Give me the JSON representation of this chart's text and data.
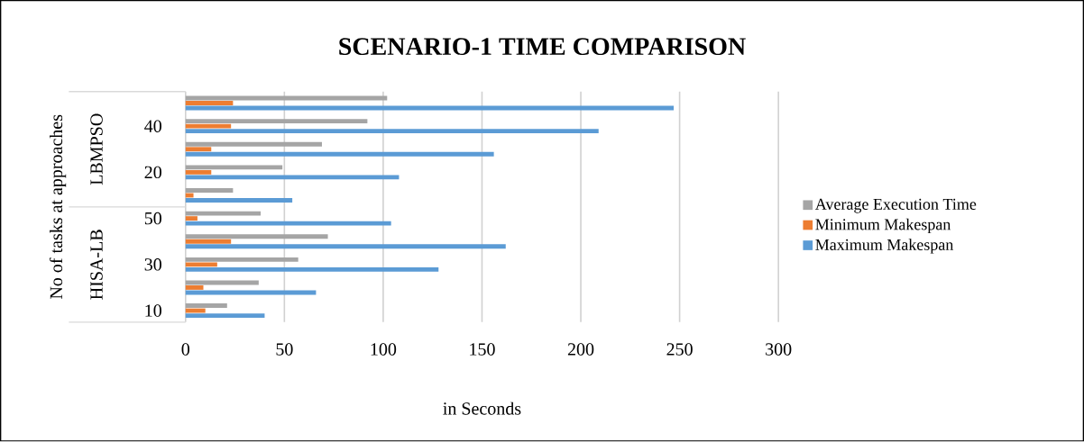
{
  "chart_data": {
    "type": "bar",
    "orientation": "horizontal",
    "title": "SCENARIO-1 TIME COMPARISON",
    "xlabel": "in Seconds",
    "ylabel": "No of tasks at approaches",
    "categories": [
      null,
      "40",
      null,
      "20",
      null,
      "50",
      null,
      "30",
      null,
      "10"
    ],
    "annotations": [
      "LBMPSO",
      "HISA-LB"
    ],
    "series": [
      {
        "name": "Average Execution Time",
        "color": "#a5a5a5",
        "values": [
          102,
          92,
          69,
          49,
          24,
          38,
          72,
          57,
          37,
          21
        ]
      },
      {
        "name": "Minimum Makespan",
        "color": "#ed7d31",
        "values": [
          24,
          23,
          13,
          13,
          4,
          6,
          23,
          16,
          9,
          10
        ]
      },
      {
        "name": "Maximum Makespan",
        "color": "#5b9bd5",
        "values": [
          247,
          209,
          156,
          108,
          54,
          104,
          162,
          128,
          66,
          40
        ]
      }
    ],
    "xlim": [
      0,
      300
    ],
    "xticks": [
      0,
      50,
      100,
      150,
      200,
      250,
      300
    ],
    "grid": "x",
    "legend": "right"
  }
}
